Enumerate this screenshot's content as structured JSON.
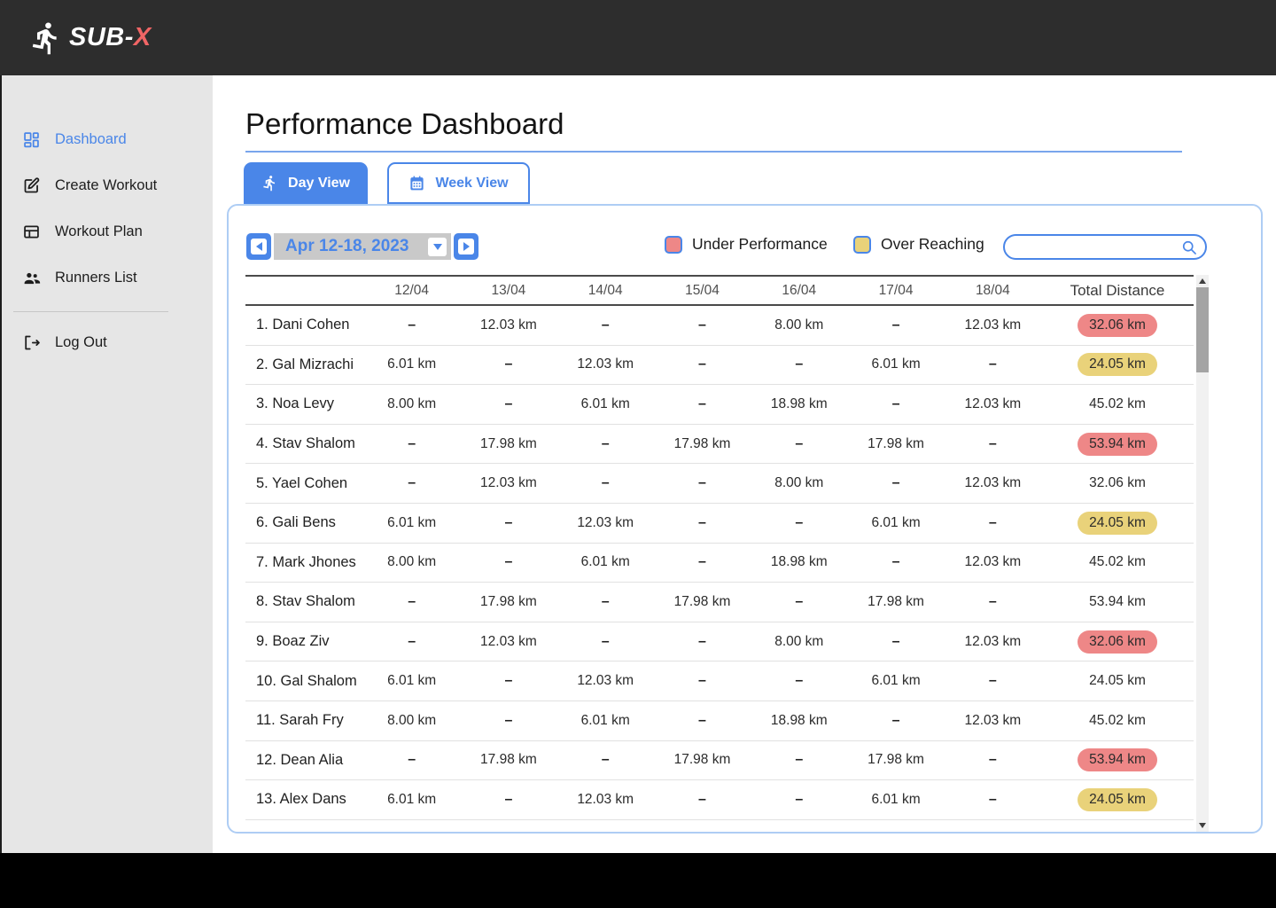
{
  "brand": {
    "name_prefix": "SUB-",
    "name_suffix": "X"
  },
  "sidebar": {
    "items": [
      {
        "id": "dashboard",
        "label": "Dashboard",
        "icon": "dashboard-grid-icon",
        "active": true
      },
      {
        "id": "create-workout",
        "label": "Create Workout",
        "icon": "create-workout-icon",
        "active": false
      },
      {
        "id": "workout-plan",
        "label": "Workout Plan",
        "icon": "workout-plan-icon",
        "active": false
      },
      {
        "id": "runners-list",
        "label": "Runners List",
        "icon": "runners-list-icon",
        "active": false
      }
    ],
    "logout_label": "Log Out"
  },
  "page": {
    "title": "Performance Dashboard"
  },
  "tabs": {
    "day_view": "Day View",
    "week_view": "Week View"
  },
  "controls": {
    "date_range": "Apr 12-18, 2023",
    "legend": {
      "under_performance": "Under Performance",
      "over_reaching": "Over Reaching"
    },
    "search_placeholder": ""
  },
  "colors": {
    "accent_blue": "#4a86e8",
    "under_performance_red": "#ee8787",
    "over_reaching_yellow": "#e9d27a"
  },
  "table": {
    "runner_column": "",
    "date_columns": [
      "12/04",
      "13/04",
      "14/04",
      "15/04",
      "16/04",
      "17/04",
      "18/04"
    ],
    "total_column": "Total Distance",
    "dash": "–",
    "rows": [
      {
        "name": "1. Dani Cohen",
        "cells": [
          "–",
          "12.03 km",
          "–",
          "–",
          "8.00 km",
          "–",
          "12.03 km"
        ],
        "total": "32.06 km",
        "highlight": "under"
      },
      {
        "name": "2. Gal Mizrachi",
        "cells": [
          "6.01 km",
          "–",
          "12.03 km",
          "–",
          "–",
          "6.01 km",
          "–"
        ],
        "total": "24.05 km",
        "highlight": "over"
      },
      {
        "name": "3. Noa Levy",
        "cells": [
          "8.00 km",
          "–",
          "6.01 km",
          "–",
          "18.98 km",
          "–",
          "12.03 km"
        ],
        "total": "45.02 km",
        "highlight": null
      },
      {
        "name": "4. Stav Shalom",
        "cells": [
          "–",
          "17.98 km",
          "–",
          "17.98 km",
          "–",
          "17.98 km",
          "–"
        ],
        "total": "53.94 km",
        "highlight": "under"
      },
      {
        "name": "5. Yael Cohen",
        "cells": [
          "–",
          "12.03 km",
          "–",
          "–",
          "8.00 km",
          "–",
          "12.03 km"
        ],
        "total": "32.06 km",
        "highlight": null
      },
      {
        "name": "6. Gali Bens",
        "cells": [
          "6.01 km",
          "–",
          "12.03 km",
          "–",
          "–",
          "6.01 km",
          "–"
        ],
        "total": "24.05 km",
        "highlight": "over"
      },
      {
        "name": "7. Mark Jhones",
        "cells": [
          "8.00 km",
          "–",
          "6.01 km",
          "–",
          "18.98 km",
          "–",
          "12.03 km"
        ],
        "total": "45.02 km",
        "highlight": null
      },
      {
        "name": "8. Stav Shalom",
        "cells": [
          "–",
          "17.98 km",
          "–",
          "17.98 km",
          "–",
          "17.98 km",
          "–"
        ],
        "total": "53.94 km",
        "highlight": null
      },
      {
        "name": "9. Boaz Ziv",
        "cells": [
          "–",
          "12.03 km",
          "–",
          "–",
          "8.00 km",
          "–",
          "12.03 km"
        ],
        "total": "32.06 km",
        "highlight": "under"
      },
      {
        "name": "10. Gal Shalom",
        "cells": [
          "6.01 km",
          "–",
          "12.03 km",
          "–",
          "–",
          "6.01 km",
          "–"
        ],
        "total": "24.05 km",
        "highlight": null
      },
      {
        "name": "11. Sarah Fry",
        "cells": [
          "8.00 km",
          "–",
          "6.01 km",
          "–",
          "18.98 km",
          "–",
          "12.03 km"
        ],
        "total": "45.02 km",
        "highlight": null
      },
      {
        "name": "12. Dean Alia",
        "cells": [
          "–",
          "17.98 km",
          "–",
          "17.98 km",
          "–",
          "17.98 km",
          "–"
        ],
        "total": "53.94 km",
        "highlight": "under"
      },
      {
        "name": "13. Alex Dans",
        "cells": [
          "6.01 km",
          "–",
          "12.03 km",
          "–",
          "–",
          "6.01 km",
          "–"
        ],
        "total": "24.05 km",
        "highlight": "over"
      }
    ]
  }
}
